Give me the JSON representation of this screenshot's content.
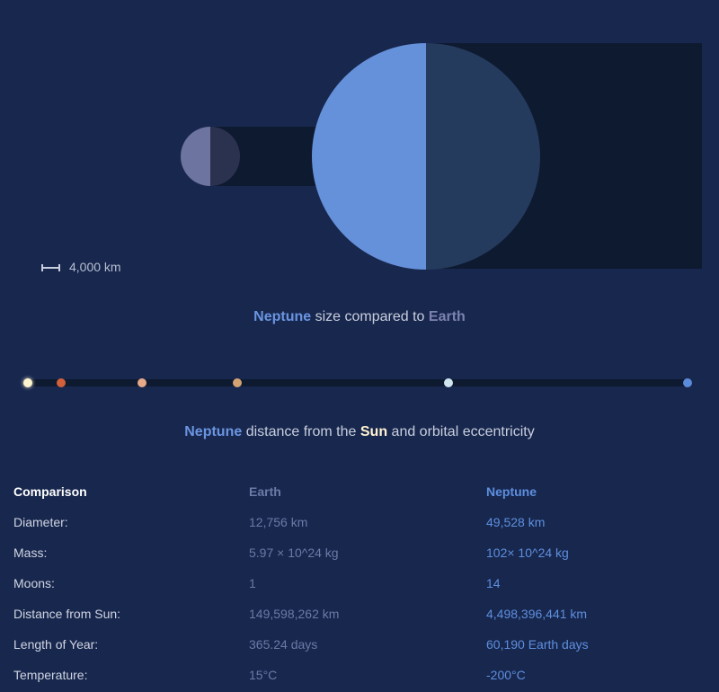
{
  "size_comparison": {
    "scale_label": "4,000 km",
    "caption": {
      "planet": "Neptune",
      "middle": " size compared to ",
      "reference": "Earth"
    },
    "colors": {
      "earth_lit": "#6e74a0",
      "earth_dark": "#2a3250",
      "neptune_lit": "#6591da",
      "neptune_dark": "#253b5e",
      "shadow": "#0e1a30"
    }
  },
  "orbit": {
    "bodies": [
      {
        "name": "sun-icon",
        "color": "#fff4d0"
      },
      {
        "name": "mercury-dot",
        "color": "#d2603a"
      },
      {
        "name": "venus-dot",
        "color": "#e6a98a"
      },
      {
        "name": "mars-dot",
        "color": "#d4a373"
      },
      {
        "name": "earth-dot",
        "color": "#d0e6ee"
      },
      {
        "name": "neptune-dot",
        "color": "#5b8bdb"
      }
    ],
    "caption": {
      "planet": "Neptune",
      "middle": " distance from the ",
      "sun": "Sun",
      "end": " and orbital eccentricity"
    }
  },
  "table": {
    "headers": [
      "Comparison",
      "Earth",
      "Neptune"
    ],
    "rows": [
      [
        "Diameter:",
        "12,756 km",
        "49,528 km"
      ],
      [
        "Mass:",
        "5.97 × 10^24 kg",
        "102× 10^24 kg"
      ],
      [
        "Moons:",
        "1",
        "14"
      ],
      [
        "Distance from Sun:",
        "149,598,262 km",
        "4,498,396,441 km"
      ],
      [
        "Length of Year:",
        "365.24 days",
        "60,190 Earth days"
      ],
      [
        "Temperature:",
        "15°C",
        "-200°C"
      ]
    ]
  }
}
